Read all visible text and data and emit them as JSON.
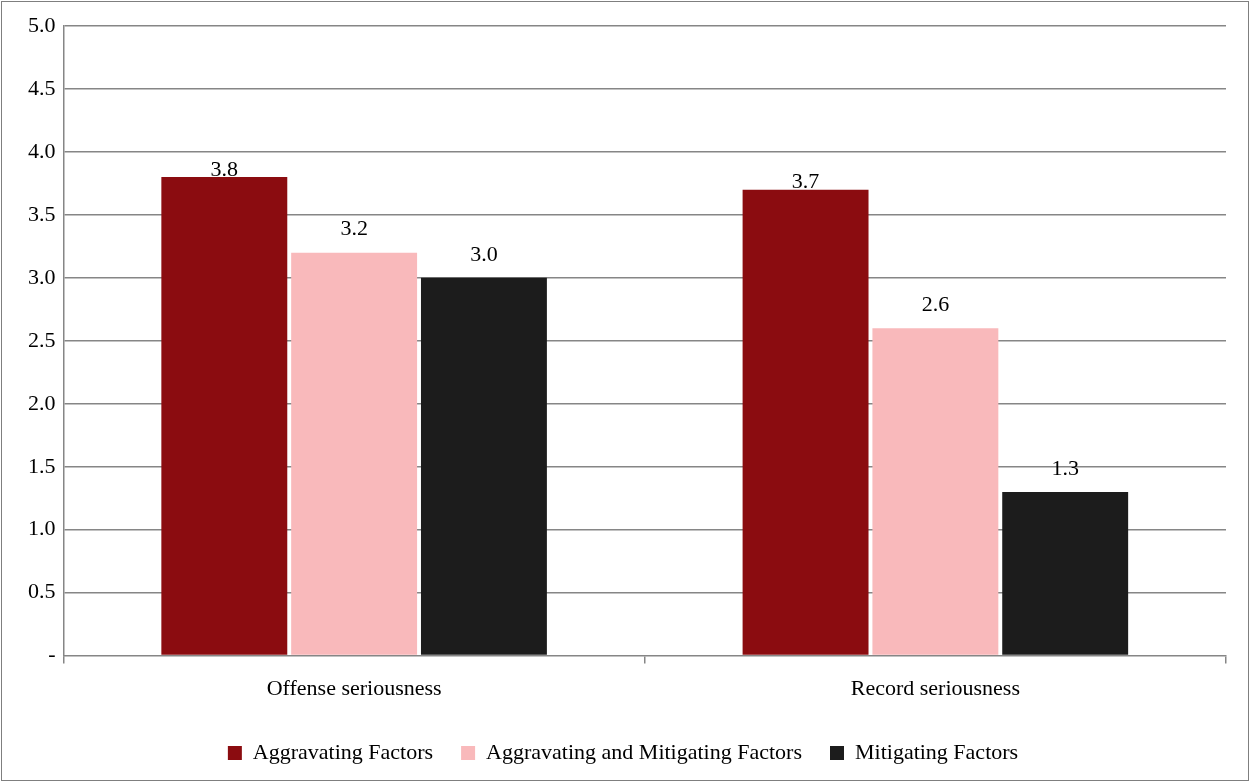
{
  "chart_data": {
    "type": "bar",
    "categories": [
      "Offense seriousness",
      "Record seriousness"
    ],
    "series": [
      {
        "name": "Aggravating Factors",
        "color": "#8b0c10",
        "values": [
          3.8,
          3.7
        ],
        "value_labels": [
          "3.8",
          "3.7"
        ]
      },
      {
        "name": "Aggravating and Mitigating Factors",
        "color": "#f9b9bb",
        "values": [
          3.2,
          2.6
        ],
        "value_labels": [
          "3.2",
          "2.6"
        ]
      },
      {
        "name": "Mitigating Factors",
        "color": "#1c1c1c",
        "values": [
          3.0,
          1.3
        ],
        "value_labels": [
          "3.0",
          "1.3"
        ]
      }
    ],
    "ylim": [
      0,
      5
    ],
    "yticks": [
      {
        "value": 0,
        "label": "-"
      },
      {
        "value": 0.5,
        "label": "0.5"
      },
      {
        "value": 1,
        "label": "1.0"
      },
      {
        "value": 1.5,
        "label": "1.5"
      },
      {
        "value": 2,
        "label": "2.0"
      },
      {
        "value": 2.5,
        "label": "2.5"
      },
      {
        "value": 3,
        "label": "3.0"
      },
      {
        "value": 3.5,
        "label": "3.5"
      },
      {
        "value": 4,
        "label": "4.0"
      },
      {
        "value": 4.5,
        "label": "4.5"
      },
      {
        "value": 5,
        "label": "5.0"
      }
    ],
    "grid": "y",
    "legend": "bottom"
  }
}
